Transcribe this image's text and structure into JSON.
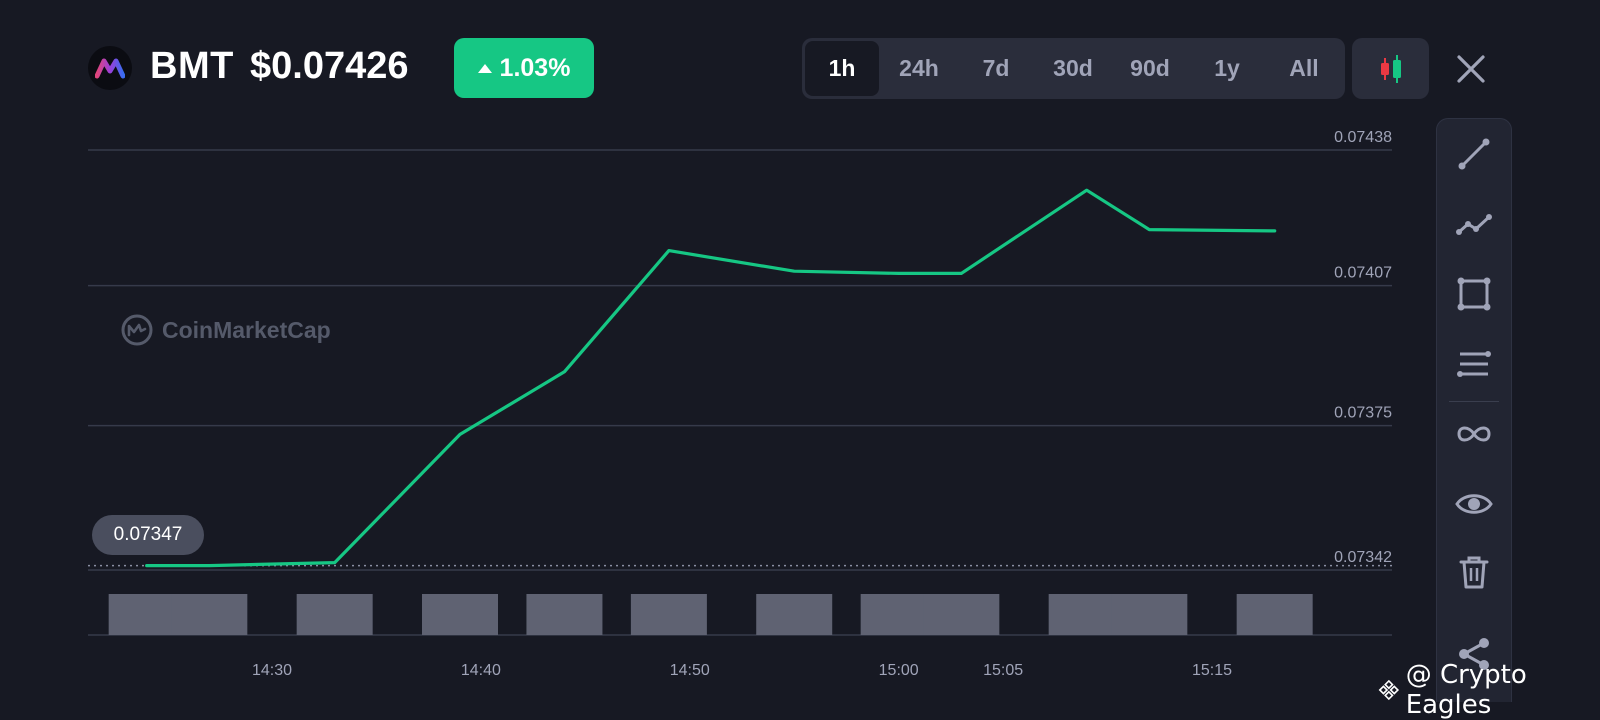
{
  "header": {
    "symbol": "BMT",
    "price": "$0.07426",
    "change": "1.03%",
    "change_direction": "up",
    "accent_color": "#16c784"
  },
  "range_tabs": [
    {
      "label": "1h",
      "active": true
    },
    {
      "label": "24h",
      "active": false
    },
    {
      "label": "7d",
      "active": false
    },
    {
      "label": "30d",
      "active": false
    },
    {
      "label": "90d",
      "active": false
    },
    {
      "label": "1y",
      "active": false
    },
    {
      "label": "All",
      "active": false
    }
  ],
  "icons": {
    "logo": "bmt-logo-icon",
    "candle": "candlestick-icon",
    "close": "close-icon"
  },
  "watermark": "CoinMarketCap",
  "price_tag": "0.07347",
  "toolbar": [
    "trend-line-icon",
    "polyline-icon",
    "rectangle-icon",
    "horizontal-lines-icon",
    "infinity-icon",
    "eye-icon",
    "trash-icon",
    "share-icon"
  ],
  "credit": "@ Crypto Eagles",
  "chart_data": {
    "type": "line",
    "line_color": "#16c784",
    "x": [
      "14:24",
      "14:27",
      "14:33",
      "14:39",
      "14:44",
      "14:49",
      "14:55",
      "15:00",
      "15:03",
      "15:09",
      "15:12",
      "15:18"
    ],
    "y": [
      0.07343,
      0.07343,
      0.073437,
      0.07373,
      0.073873,
      0.07415,
      0.074103,
      0.074098,
      0.074098,
      0.074288,
      0.074198,
      0.074195
    ],
    "volume": [
      1,
      1,
      1,
      1,
      1,
      1,
      1,
      1,
      1,
      1,
      1,
      1
    ],
    "x_ticks": [
      "14:30",
      "14:40",
      "14:50",
      "15:00",
      "15:05",
      "15:15"
    ],
    "y_ticks": [
      "0.07438",
      "0.07407",
      "0.07375",
      "0.07342"
    ],
    "ylim": [
      0.07342,
      0.07438
    ],
    "reference_value": 0.07343,
    "grid": true
  }
}
